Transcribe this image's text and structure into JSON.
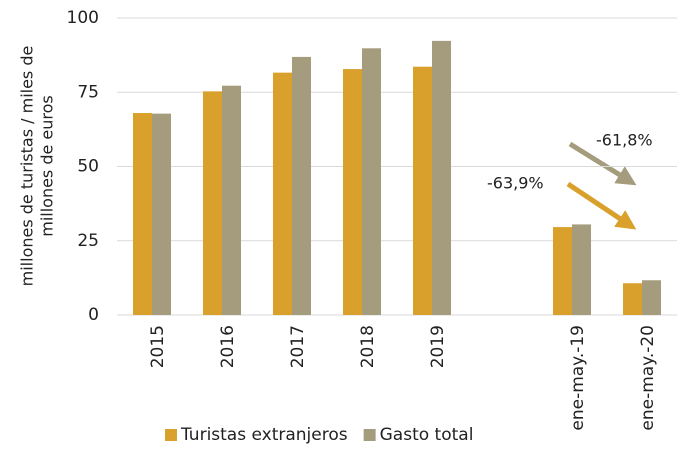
{
  "chart_data": {
    "type": "bar",
    "ylabel": [
      "millones de turistas / miles de",
      "millones de euros"
    ],
    "categories": [
      "2015",
      "2016",
      "2017",
      "2018",
      "2019",
      null,
      "ene-may.-19",
      "ene-may.-20"
    ],
    "series": [
      {
        "name": "Turistas extranjeros",
        "color": "#d9a12b",
        "values": [
          68,
          75.3,
          81.6,
          82.8,
          83.6,
          null,
          29.6,
          10.7
        ]
      },
      {
        "name": "Gasto total",
        "color": "#a59c7e",
        "values": [
          67.8,
          77.2,
          86.9,
          89.8,
          92.3,
          null,
          30.5,
          11.7
        ]
      }
    ],
    "ylim": [
      0,
      100
    ],
    "yticks": [
      0,
      25,
      50,
      75,
      100
    ],
    "grid": true,
    "legend": "bottom",
    "annotations": [
      "-61,8%",
      "-63,9%"
    ]
  }
}
